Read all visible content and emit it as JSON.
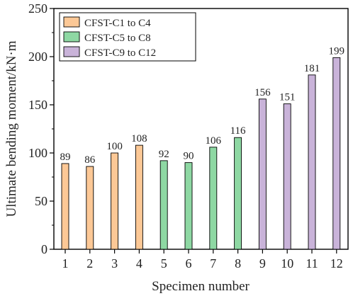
{
  "chart_data": {
    "type": "bar",
    "xlabel": "Specimen number",
    "ylabel": "Ultimate bending moment/kN·m",
    "ylim": [
      0,
      250
    ],
    "yticks": [
      0,
      50,
      100,
      150,
      200,
      250
    ],
    "categories": [
      "1",
      "2",
      "3",
      "4",
      "5",
      "6",
      "7",
      "8",
      "9",
      "10",
      "11",
      "12"
    ],
    "values": [
      89,
      86,
      100,
      108,
      92,
      90,
      106,
      116,
      156,
      151,
      181,
      199
    ],
    "data_labels": [
      "89",
      "86",
      "100",
      "108",
      "92",
      "90",
      "106",
      "116",
      "156",
      "151",
      "181",
      "199"
    ],
    "groups": [
      {
        "name": "CFST-C1 to C4",
        "color": "#fcc896",
        "indices": [
          0,
          1,
          2,
          3
        ]
      },
      {
        "name": "CFST-C5 to C8",
        "color": "#8ed8a3",
        "indices": [
          4,
          5,
          6,
          7
        ]
      },
      {
        "name": "CFST-C9 to C12",
        "color": "#c9b3d9",
        "indices": [
          8,
          9,
          10,
          11
        ]
      }
    ],
    "legend_position": "top-left",
    "grid": false
  }
}
